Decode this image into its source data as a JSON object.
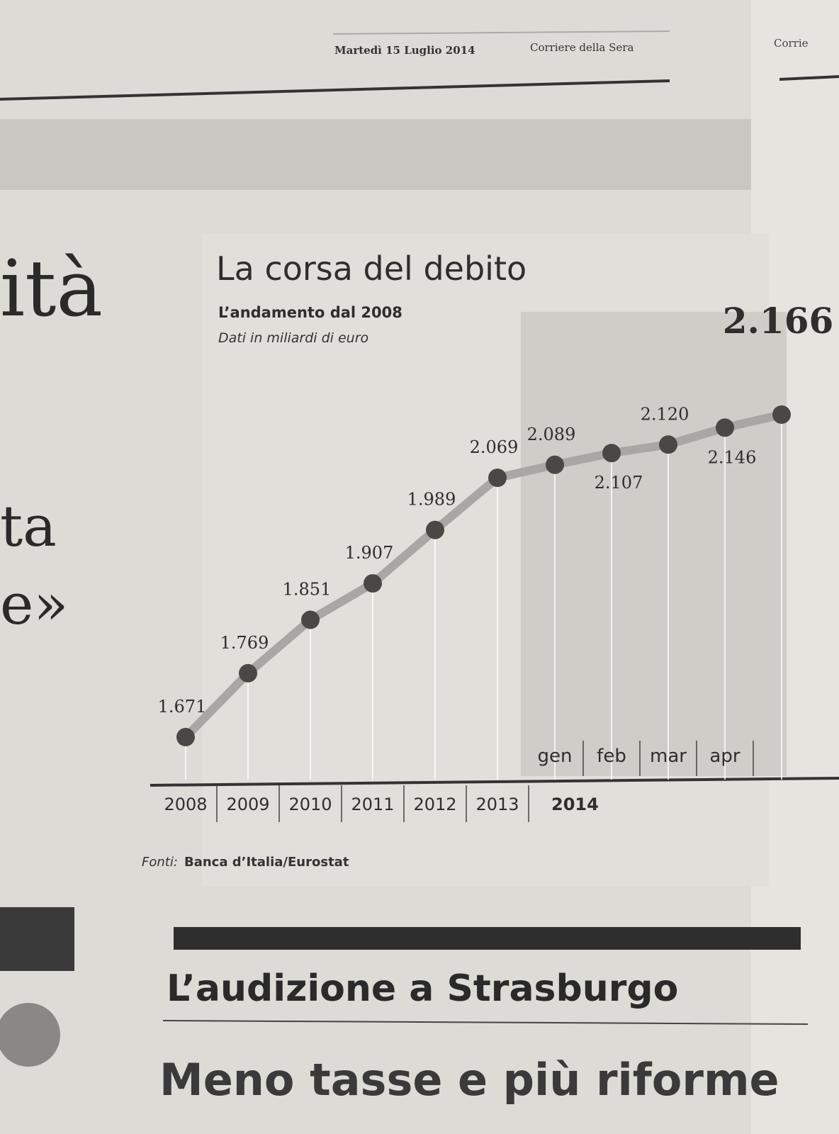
{
  "header": {
    "date": "Martedì 15 Luglio 2014",
    "paper": "Corriere della Sera",
    "next_page": "Corrie"
  },
  "side_text": [
    "ità",
    "ta",
    "e»"
  ],
  "chart_data": {
    "type": "line",
    "title": "La corsa del debito",
    "subtitle": "L’andamento dal 2008",
    "note": "Dati in miliardi di euro",
    "categories": [
      "2008",
      "2009",
      "2010",
      "2011",
      "2012",
      "2013",
      "gen",
      "feb",
      "mar",
      "apr",
      null
    ],
    "group_label": "2014",
    "values": [
      1671,
      1769,
      1851,
      1907,
      1989,
      2069,
      2089,
      2107,
      2120,
      2146,
      2166
    ],
    "value_labels": [
      "1.671",
      "1.769",
      "1.851",
      "1.907",
      "1.989",
      "2.069",
      "2.089",
      "2.107",
      "2.120",
      "2.146",
      "2.166"
    ],
    "color": "#4a4846",
    "source_prefix": "Fonti:",
    "source": "Banca d’Italia/Eurostat"
  },
  "headlines": [
    "L’audizione a Strasburgo",
    "Meno tasse e più riforme"
  ]
}
